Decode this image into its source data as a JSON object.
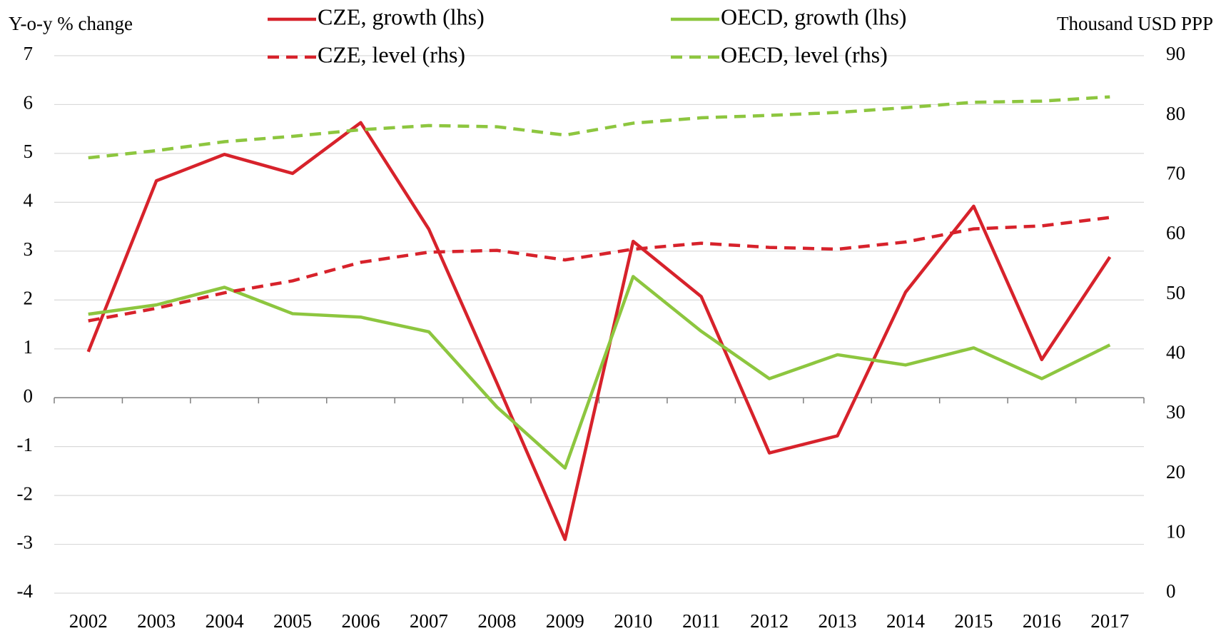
{
  "chart_data": {
    "type": "line",
    "y_label": "Y-o-y % change",
    "y2_label": "Thousand USD PPP",
    "categories": [
      "2002",
      "2003",
      "2004",
      "2005",
      "2006",
      "2007",
      "2008",
      "2009",
      "2010",
      "2011",
      "2012",
      "2013",
      "2014",
      "2015",
      "2016",
      "2017"
    ],
    "series": [
      {
        "name": "CZE, growth (lhs)",
        "color": "#d7222b",
        "style": "solid",
        "axis": "y",
        "values": [
          0.94,
          4.44,
          4.98,
          4.59,
          5.63,
          3.45,
          0.3,
          -2.9,
          3.2,
          2.07,
          -1.13,
          -0.78,
          2.16,
          3.92,
          0.78,
          2.88
        ]
      },
      {
        "name": "OECD, growth (lhs)",
        "color": "#8dc63f",
        "style": "solid",
        "axis": "y",
        "values": [
          1.71,
          1.9,
          2.26,
          1.72,
          1.65,
          1.35,
          -0.19,
          -1.44,
          2.48,
          1.36,
          0.39,
          0.88,
          0.67,
          1.02,
          0.39,
          1.08
        ]
      },
      {
        "name": "CZE, level (rhs)",
        "color": "#d7222b",
        "style": "dashed",
        "axis": "y2",
        "values": [
          45.6,
          47.7,
          50.3,
          52.3,
          55.4,
          57.1,
          57.4,
          55.8,
          57.6,
          58.6,
          57.9,
          57.6,
          58.8,
          61.0,
          61.5,
          62.9
        ]
      },
      {
        "name": "OECD, level (rhs)",
        "color": "#8dc63f",
        "style": "dashed",
        "axis": "y2",
        "values": [
          72.9,
          74.1,
          75.6,
          76.5,
          77.6,
          78.3,
          78.1,
          76.7,
          78.7,
          79.6,
          80.0,
          80.5,
          81.3,
          82.2,
          82.4,
          83.1
        ]
      }
    ],
    "ylim": [
      -4,
      7
    ],
    "yticks": [
      -4,
      -3,
      -2,
      -1,
      0,
      1,
      2,
      3,
      4,
      5,
      6,
      7
    ],
    "y2lim": [
      0,
      90
    ],
    "y2ticks": [
      0,
      10,
      20,
      30,
      40,
      50,
      60,
      70,
      80,
      90
    ],
    "grid": true
  }
}
